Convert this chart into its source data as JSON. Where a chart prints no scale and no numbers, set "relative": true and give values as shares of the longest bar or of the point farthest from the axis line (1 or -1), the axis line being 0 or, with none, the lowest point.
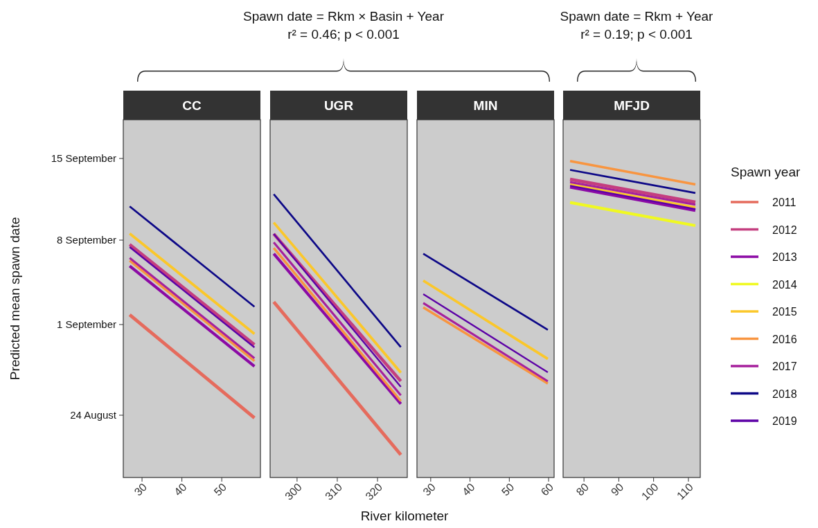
{
  "chart_data": [
    {
      "type": "line",
      "relative": true,
      "title": "CC",
      "ylabel": "Predicted mean spawn date",
      "annotations": [
        "Spawn date = Rkm × Basin + Year",
        "r² = 0.46; p < 0.001",
        "24 August",
        "1 September",
        "8 September",
        "15 September"
      ],
      "xlim": [
        25.3,
        59.7
      ],
      "xticks": [
        30,
        40,
        50
      ],
      "series": [
        {
          "color": "#e56b5d",
          "x": [
            26.9,
            58.2
          ],
          "values": [
            0.6,
            0.22
          ]
        },
        {
          "color": "#c43e7f",
          "x": [
            26.9,
            58.2
          ],
          "values": [
            0.86,
            0.49
          ]
        },
        {
          "color": "#8b0aa5",
          "x": [
            26.9,
            58.2
          ],
          "values": [
            0.78,
            0.41
          ]
        },
        {
          "color": "#fbc72a",
          "x": [
            26.9,
            58.2
          ],
          "values": [
            0.9,
            0.53
          ]
        },
        {
          "color": "#f89540",
          "x": [
            26.9,
            58.2
          ],
          "values": [
            0.8,
            0.43
          ]
        },
        {
          "color": "#a6209c",
          "x": [
            26.9,
            58.2
          ],
          "values": [
            0.81,
            0.44
          ]
        },
        {
          "color": "#0d0887",
          "x": [
            26.9,
            58.2
          ],
          "values": [
            1.0,
            0.63
          ]
        },
        {
          "color": "#5c01a6",
          "x": [
            26.9,
            58.2
          ],
          "values": [
            0.85,
            0.48
          ]
        }
      ]
    },
    {
      "type": "line",
      "relative": true,
      "title": "UGR",
      "xlabel": "River kilometer",
      "xlim": [
        293.3,
        327.4
      ],
      "xticks": [
        300,
        310,
        320
      ],
      "series": [
        {
          "color": "#e56b5d",
          "x": [
            294.2,
            325.8
          ],
          "values": [
            0.62,
            0.08
          ]
        },
        {
          "color": "#c43e7f",
          "x": [
            294.2,
            325.8
          ],
          "values": [
            0.86,
            0.34
          ]
        },
        {
          "color": "#8b0aa5",
          "x": [
            294.2,
            325.8
          ],
          "values": [
            0.79,
            0.26
          ]
        },
        {
          "color": "#fbc72a",
          "x": [
            294.2,
            325.8
          ],
          "values": [
            0.9,
            0.37
          ]
        },
        {
          "color": "#f89540",
          "x": [
            294.2,
            325.8
          ],
          "values": [
            0.81,
            0.27
          ]
        },
        {
          "color": "#a6209c",
          "x": [
            294.2,
            325.8
          ],
          "values": [
            0.83,
            0.29
          ]
        },
        {
          "color": "#0d0887",
          "x": [
            294.2,
            325.8
          ],
          "values": [
            1.0,
            0.46
          ]
        },
        {
          "color": "#5c01a6",
          "x": [
            294.2,
            325.8
          ],
          "values": [
            0.86,
            0.32
          ]
        }
      ]
    },
    {
      "type": "line",
      "relative": true,
      "title": "MIN",
      "xlim": [
        26.5,
        61.4
      ],
      "xticks": [
        30,
        40,
        50,
        60
      ],
      "series": [
        {
          "color": "#fbc72a",
          "x": [
            28.1,
            59.8
          ],
          "values": [
            0.88,
            0.53
          ]
        },
        {
          "color": "#f89540",
          "x": [
            28.1,
            59.8
          ],
          "values": [
            0.76,
            0.42
          ]
        },
        {
          "color": "#a6209c",
          "x": [
            28.1,
            59.8
          ],
          "values": [
            0.78,
            0.43
          ]
        },
        {
          "color": "#0d0887",
          "x": [
            28.1,
            59.8
          ],
          "values": [
            1.0,
            0.66
          ]
        },
        {
          "color": "#5c01a6",
          "x": [
            28.1,
            59.8
          ],
          "values": [
            0.82,
            0.47
          ]
        }
      ]
    },
    {
      "type": "line",
      "relative": true,
      "title": "MFJD",
      "legend_title": "Spawn year",
      "legend": "right",
      "annotations": [
        "Spawn date = Rkm + Year",
        "r² = 0.19; p < 0.001"
      ],
      "xlim": [
        74.0,
        113.4
      ],
      "xticks": [
        80,
        90,
        100,
        110
      ],
      "series": [
        {
          "name": "2011",
          "color": "#e56b5d"
        },
        {
          "name": "2012",
          "color": "#c43e7f",
          "x": [
            76.0,
            112.0
          ],
          "values": [
            0.942,
            0.87
          ]
        },
        {
          "name": "2013",
          "color": "#8b0aa5",
          "x": [
            76.0,
            112.0
          ],
          "values": [
            0.918,
            0.844
          ]
        },
        {
          "name": "2014",
          "color": "#f0f921",
          "x": [
            76.0,
            112.0
          ],
          "values": [
            0.869,
            0.796
          ]
        },
        {
          "name": "2015",
          "color": "#fbc72a",
          "x": [
            76.0,
            112.0
          ],
          "values": [
            0.926,
            0.853
          ]
        },
        {
          "name": "2016",
          "color": "#f89540",
          "x": [
            76.0,
            112.0
          ],
          "values": [
            1.0,
            0.926
          ]
        },
        {
          "name": "2017",
          "color": "#a6209c",
          "x": [
            76.0,
            112.0
          ],
          "values": [
            0.933,
            0.862
          ]
        },
        {
          "name": "2018",
          "color": "#0d0887",
          "x": [
            76.0,
            112.0
          ],
          "values": [
            0.972,
            0.899
          ]
        },
        {
          "name": "2019",
          "color": "#5c01a6",
          "x": [
            76.0,
            112.0
          ],
          "values": [
            0.922,
            0.848
          ]
        }
      ]
    }
  ]
}
